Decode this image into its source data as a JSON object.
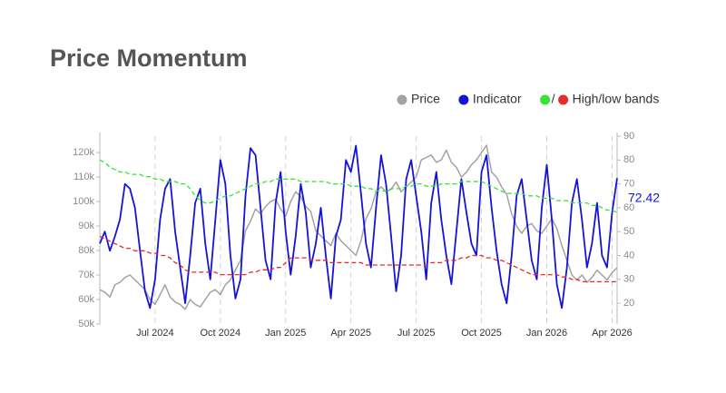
{
  "chart_data": {
    "type": "line",
    "title": "Price Momentum",
    "categories": [
      null,
      null,
      null,
      null,
      null,
      null,
      null,
      null,
      null,
      null,
      null,
      "Jul 2024",
      null,
      null,
      null,
      null,
      null,
      null,
      null,
      null,
      null,
      null,
      null,
      null,
      "Oct 2024",
      null,
      null,
      null,
      null,
      null,
      null,
      null,
      null,
      null,
      null,
      null,
      null,
      "Jan 2025",
      null,
      null,
      null,
      null,
      null,
      null,
      null,
      null,
      null,
      null,
      null,
      null,
      "Apr 2025",
      null,
      null,
      null,
      null,
      null,
      null,
      null,
      null,
      null,
      null,
      null,
      null,
      "Jul 2025",
      null,
      null,
      null,
      null,
      null,
      null,
      null,
      null,
      null,
      null,
      null,
      null,
      "Oct 2025",
      null,
      null,
      null,
      null,
      null,
      null,
      null,
      null,
      null,
      null,
      null,
      null,
      "Jan 2026",
      null,
      null,
      null,
      null,
      null,
      null,
      null,
      null,
      null,
      null,
      null,
      null,
      "Apr 2026",
      null
    ],
    "series": [
      {
        "name": "Price",
        "color": "#a3a3a3",
        "values": [
          64000,
          63000,
          61000,
          66000,
          67000,
          69000,
          70000,
          68000,
          66000,
          64000,
          60000,
          58000,
          62000,
          66000,
          61000,
          59000,
          58000,
          56000,
          60000,
          58000,
          57000,
          60000,
          63000,
          64000,
          62000,
          66000,
          68000,
          72000,
          76000,
          88000,
          92000,
          97000,
          95000,
          98000,
          100000,
          101000,
          97000,
          94000,
          100000,
          104000,
          102000,
          98000,
          96000,
          88000,
          86000,
          84000,
          82000,
          87000,
          84000,
          82000,
          80000,
          78000,
          84000,
          93000,
          97000,
          104000,
          106000,
          104000,
          105000,
          108000,
          104000,
          106000,
          108000,
          110000,
          117000,
          118000,
          119000,
          116000,
          117000,
          121000,
          116000,
          114000,
          110000,
          112000,
          115000,
          117000,
          120000,
          123000,
          112000,
          110000,
          106000,
          103000,
          95000,
          90000,
          87000,
          90000,
          91000,
          88000,
          87000,
          90000,
          93000,
          89000,
          82000,
          76000,
          70000,
          68000,
          70000,
          67000,
          69000,
          72000,
          70000,
          68000,
          71000,
          73000
        ]
      },
      {
        "name": "Indicator",
        "color": "#1414d8",
        "axis": "y2",
        "values": [
          45,
          50,
          42,
          48,
          55,
          70,
          68,
          60,
          42,
          25,
          18,
          30,
          55,
          68,
          72,
          50,
          35,
          20,
          40,
          62,
          68,
          45,
          30,
          55,
          80,
          70,
          40,
          22,
          30,
          65,
          85,
          82,
          60,
          38,
          30,
          62,
          75,
          50,
          32,
          48,
          70,
          58,
          35,
          45,
          60,
          40,
          22,
          48,
          55,
          80,
          75,
          86,
          66,
          45,
          35,
          60,
          82,
          70,
          48,
          25,
          40,
          72,
          80,
          65,
          50,
          30,
          62,
          75,
          55,
          40,
          28,
          50,
          72,
          58,
          45,
          40,
          75,
          82,
          60,
          42,
          28,
          20,
          40,
          65,
          72,
          55,
          38,
          30,
          60,
          78,
          55,
          28,
          18,
          35,
          62,
          72,
          55,
          35,
          45,
          62,
          40,
          35,
          58,
          72.42
        ]
      },
      {
        "name": "High/low bands",
        "color": "#33e633",
        "low_color": "#e82a2a",
        "axis": "y2",
        "values": [
          80,
          79,
          77,
          76,
          75,
          75,
          74,
          74,
          74,
          73,
          73,
          72,
          72,
          71,
          71,
          71,
          70,
          70,
          68,
          65,
          63,
          62,
          62,
          63,
          64,
          65,
          65,
          66,
          67,
          68,
          69,
          70,
          70,
          71,
          71,
          72,
          72,
          72,
          72,
          72,
          71,
          71,
          71,
          71,
          71,
          71,
          70,
          70,
          70,
          70,
          69,
          69,
          69,
          68,
          68,
          67,
          67,
          67,
          68,
          68,
          68,
          69,
          69,
          70,
          70,
          69,
          69,
          69,
          70,
          70,
          70,
          70,
          71,
          71,
          71,
          71,
          71,
          70,
          69,
          68,
          67,
          66,
          66,
          66,
          66,
          65,
          65,
          65,
          64,
          64,
          64,
          63,
          63,
          63,
          62,
          62,
          62,
          62,
          61,
          61,
          60,
          59,
          59,
          58
        ],
        "low_values": [
          48,
          47,
          46,
          45,
          44,
          43,
          43,
          42,
          42,
          42,
          41,
          41,
          40,
          40,
          39,
          37,
          36,
          34,
          33,
          33,
          33,
          33,
          33,
          33,
          32,
          32,
          32,
          32,
          32,
          32,
          33,
          33,
          34,
          34,
          34,
          35,
          35,
          37,
          39,
          39,
          39,
          39,
          38,
          38,
          38,
          38,
          37,
          37,
          37,
          37,
          37,
          37,
          37,
          36,
          36,
          36,
          36,
          36,
          36,
          36,
          36,
          36,
          36,
          36,
          36,
          36,
          37,
          37,
          37,
          38,
          38,
          38,
          39,
          39,
          40,
          40,
          40,
          39,
          39,
          38,
          38,
          37,
          36,
          35,
          34,
          33,
          32,
          32,
          32,
          32,
          32,
          32,
          31,
          31,
          30,
          30,
          29,
          29,
          29,
          29,
          29,
          29,
          29,
          29
        ]
      }
    ],
    "ylim": [
      50000,
      126700
    ],
    "yticks": [
      {
        "value": 50000,
        "label": "50k"
      },
      {
        "value": 60000,
        "label": "60k"
      },
      {
        "value": 70000,
        "label": "70k"
      },
      {
        "value": 80000,
        "label": "80k"
      },
      {
        "value": 90000,
        "label": "90k"
      },
      {
        "value": 100000,
        "label": "100k"
      },
      {
        "value": 110000,
        "label": "110k"
      },
      {
        "value": 120000,
        "label": "120k"
      }
    ],
    "y2lim": [
      11.3,
      90
    ],
    "y2ticks": [
      20,
      30,
      40,
      50,
      60,
      70,
      80,
      90
    ],
    "grid": true
  }
}
